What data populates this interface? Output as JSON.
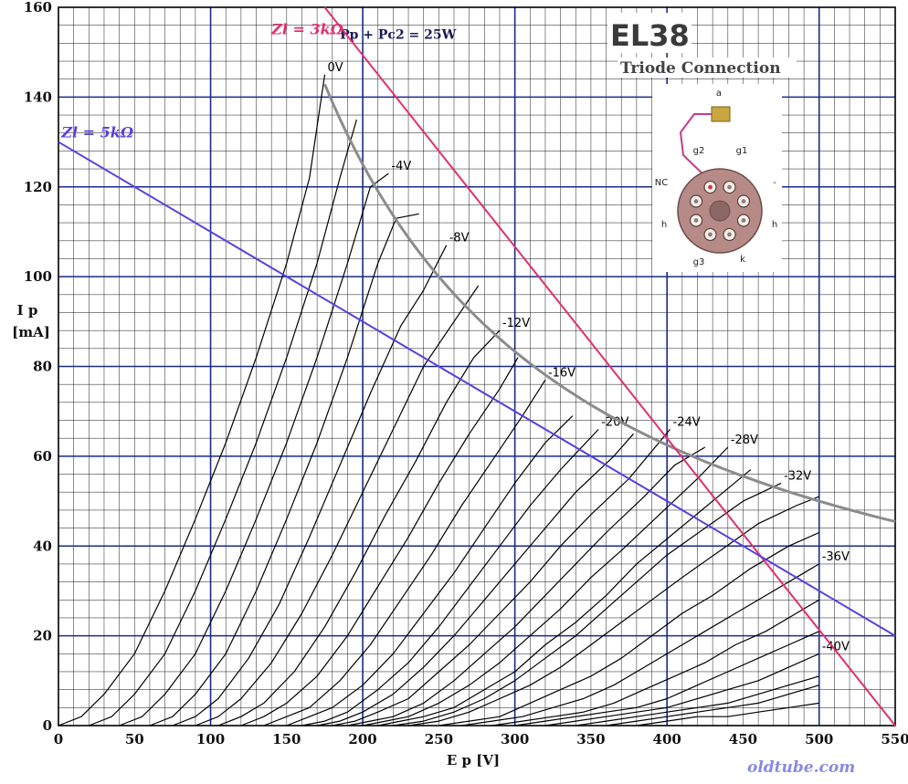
{
  "chart_data": {
    "type": "line",
    "title": "EL38",
    "subtitle": "Triode Connection",
    "xlabel": "E p [V]",
    "ylabel": "I p",
    "ylabel_unit": "[mA]",
    "xlim": [
      0,
      550
    ],
    "ylim": [
      0,
      160
    ],
    "x_ticks": [
      "0",
      "50",
      "100",
      "150",
      "200",
      "250",
      "300",
      "350",
      "400",
      "450",
      "500",
      "550"
    ],
    "y_ticks": [
      "0",
      "20",
      "40",
      "60",
      "80",
      "100",
      "120",
      "140",
      "160"
    ],
    "grid": true,
    "series": [
      {
        "name": "0V",
        "points": [
          [
            0,
            0
          ],
          [
            15,
            2
          ],
          [
            30,
            7
          ],
          [
            50,
            16
          ],
          [
            70,
            30
          ],
          [
            90,
            46
          ],
          [
            110,
            63
          ],
          [
            130,
            82
          ],
          [
            150,
            103
          ],
          [
            165,
            122
          ],
          [
            175,
            145
          ]
        ]
      },
      {
        "name": "",
        "points": [
          [
            20,
            0
          ],
          [
            35,
            2
          ],
          [
            50,
            7
          ],
          [
            70,
            16
          ],
          [
            90,
            30
          ],
          [
            110,
            46
          ],
          [
            130,
            63
          ],
          [
            150,
            82
          ],
          [
            170,
            103
          ],
          [
            185,
            122
          ],
          [
            196,
            135
          ]
        ]
      },
      {
        "name": "-4V",
        "points": [
          [
            40,
            0
          ],
          [
            55,
            2
          ],
          [
            70,
            7
          ],
          [
            90,
            16
          ],
          [
            110,
            30
          ],
          [
            130,
            46
          ],
          [
            150,
            63
          ],
          [
            170,
            82
          ],
          [
            190,
            103
          ],
          [
            205,
            120
          ],
          [
            217,
            123
          ]
        ]
      },
      {
        "name": "",
        "points": [
          [
            60,
            0
          ],
          [
            75,
            2
          ],
          [
            90,
            7
          ],
          [
            110,
            16
          ],
          [
            130,
            30
          ],
          [
            150,
            46
          ],
          [
            170,
            63
          ],
          [
            190,
            82
          ],
          [
            210,
            103
          ],
          [
            222,
            113
          ],
          [
            237,
            114
          ]
        ]
      },
      {
        "name": "-8V",
        "points": [
          [
            75,
            0
          ],
          [
            90,
            2
          ],
          [
            105,
            6
          ],
          [
            125,
            15
          ],
          [
            145,
            27
          ],
          [
            165,
            42
          ],
          [
            185,
            58
          ],
          [
            205,
            74
          ],
          [
            225,
            89
          ],
          [
            240,
            97
          ],
          [
            255,
            107
          ]
        ]
      },
      {
        "name": "",
        "points": [
          [
            90,
            0
          ],
          [
            105,
            2
          ],
          [
            120,
            6
          ],
          [
            140,
            14
          ],
          [
            160,
            25
          ],
          [
            180,
            38
          ],
          [
            200,
            52
          ],
          [
            220,
            66
          ],
          [
            240,
            80
          ],
          [
            260,
            90
          ],
          [
            276,
            98
          ]
        ]
      },
      {
        "name": "-12V",
        "points": [
          [
            105,
            0
          ],
          [
            120,
            2
          ],
          [
            135,
            5
          ],
          [
            155,
            12
          ],
          [
            175,
            22
          ],
          [
            195,
            34
          ],
          [
            215,
            47
          ],
          [
            235,
            59
          ],
          [
            255,
            72
          ],
          [
            273,
            82
          ],
          [
            290,
            88
          ]
        ]
      },
      {
        "name": "",
        "points": [
          [
            120,
            0
          ],
          [
            135,
            2
          ],
          [
            150,
            5
          ],
          [
            170,
            11
          ],
          [
            190,
            20
          ],
          [
            210,
            31
          ],
          [
            230,
            42
          ],
          [
            250,
            54
          ],
          [
            270,
            65
          ],
          [
            290,
            75
          ],
          [
            302,
            82
          ]
        ]
      },
      {
        "name": "-16V",
        "points": [
          [
            135,
            0
          ],
          [
            150,
            2
          ],
          [
            165,
            4
          ],
          [
            185,
            10
          ],
          [
            205,
            18
          ],
          [
            225,
            28
          ],
          [
            245,
            38
          ],
          [
            265,
            49
          ],
          [
            285,
            59
          ],
          [
            305,
            69
          ],
          [
            320,
            77
          ]
        ]
      },
      {
        "name": "",
        "points": [
          [
            150,
            0
          ],
          [
            165,
            2
          ],
          [
            180,
            4
          ],
          [
            200,
            9
          ],
          [
            220,
            16
          ],
          [
            240,
            25
          ],
          [
            260,
            34
          ],
          [
            280,
            44
          ],
          [
            300,
            54
          ],
          [
            320,
            63
          ],
          [
            338,
            69
          ]
        ]
      },
      {
        "name": "-20V",
        "points": [
          [
            160,
            0
          ],
          [
            175,
            1
          ],
          [
            190,
            3
          ],
          [
            210,
            8
          ],
          [
            230,
            14
          ],
          [
            250,
            22
          ],
          [
            270,
            31
          ],
          [
            290,
            40
          ],
          [
            310,
            49
          ],
          [
            330,
            57
          ],
          [
            355,
            66
          ]
        ]
      },
      {
        "name": "",
        "points": [
          [
            170,
            0
          ],
          [
            185,
            1
          ],
          [
            200,
            3
          ],
          [
            220,
            7
          ],
          [
            240,
            13
          ],
          [
            260,
            20
          ],
          [
            280,
            28
          ],
          [
            300,
            36
          ],
          [
            320,
            44
          ],
          [
            340,
            52
          ],
          [
            365,
            60
          ],
          [
            378,
            65
          ]
        ]
      },
      {
        "name": "-24V",
        "points": [
          [
            180,
            0
          ],
          [
            195,
            1
          ],
          [
            210,
            3
          ],
          [
            230,
            6
          ],
          [
            250,
            12
          ],
          [
            270,
            18
          ],
          [
            290,
            25
          ],
          [
            310,
            32
          ],
          [
            330,
            40
          ],
          [
            350,
            47
          ],
          [
            375,
            55
          ],
          [
            402,
            66
          ]
        ]
      },
      {
        "name": "",
        "points": [
          [
            190,
            0
          ],
          [
            205,
            1
          ],
          [
            220,
            2
          ],
          [
            240,
            5
          ],
          [
            260,
            10
          ],
          [
            280,
            16
          ],
          [
            300,
            22
          ],
          [
            320,
            29
          ],
          [
            340,
            36
          ],
          [
            360,
            43
          ],
          [
            385,
            51
          ],
          [
            405,
            58
          ],
          [
            425,
            62
          ]
        ]
      },
      {
        "name": "-28V",
        "points": [
          [
            200,
            0
          ],
          [
            215,
            1
          ],
          [
            230,
            2
          ],
          [
            250,
            5
          ],
          [
            270,
            9
          ],
          [
            290,
            14
          ],
          [
            310,
            20
          ],
          [
            330,
            26
          ],
          [
            350,
            33
          ],
          [
            370,
            39
          ],
          [
            395,
            47
          ],
          [
            420,
            55
          ],
          [
            440,
            62
          ]
        ]
      },
      {
        "name": "",
        "points": [
          [
            210,
            0
          ],
          [
            225,
            1
          ],
          [
            240,
            2
          ],
          [
            260,
            4
          ],
          [
            280,
            8
          ],
          [
            300,
            12
          ],
          [
            320,
            18
          ],
          [
            340,
            23
          ],
          [
            360,
            29
          ],
          [
            380,
            36
          ],
          [
            405,
            43
          ],
          [
            430,
            50
          ],
          [
            455,
            57
          ]
        ]
      },
      {
        "name": "-32V",
        "points": [
          [
            220,
            0
          ],
          [
            240,
            1
          ],
          [
            260,
            3
          ],
          [
            280,
            6
          ],
          [
            300,
            10
          ],
          [
            320,
            15
          ],
          [
            340,
            20
          ],
          [
            360,
            26
          ],
          [
            380,
            32
          ],
          [
            400,
            38
          ],
          [
            425,
            44
          ],
          [
            450,
            50
          ],
          [
            475,
            54
          ]
        ]
      },
      {
        "name": "",
        "points": [
          [
            230,
            0
          ],
          [
            250,
            1
          ],
          [
            270,
            3
          ],
          [
            290,
            6
          ],
          [
            310,
            9
          ],
          [
            330,
            13
          ],
          [
            350,
            18
          ],
          [
            370,
            23
          ],
          [
            390,
            28
          ],
          [
            410,
            33
          ],
          [
            435,
            39
          ],
          [
            460,
            45
          ],
          [
            485,
            49
          ],
          [
            500,
            51
          ]
        ]
      },
      {
        "name": "",
        "points": [
          [
            250,
            0
          ],
          [
            270,
            1
          ],
          [
            290,
            2
          ],
          [
            310,
            5
          ],
          [
            330,
            8
          ],
          [
            350,
            11
          ],
          [
            370,
            15
          ],
          [
            390,
            20
          ],
          [
            410,
            25
          ],
          [
            430,
            29
          ],
          [
            455,
            35
          ],
          [
            480,
            40
          ],
          [
            500,
            43
          ]
        ]
      },
      {
        "name": "-36V",
        "points": [
          [
            265,
            0
          ],
          [
            285,
            1
          ],
          [
            305,
            2
          ],
          [
            325,
            4
          ],
          [
            345,
            6
          ],
          [
            365,
            9
          ],
          [
            385,
            13
          ],
          [
            405,
            17
          ],
          [
            425,
            21
          ],
          [
            445,
            25
          ],
          [
            465,
            29
          ],
          [
            485,
            33
          ],
          [
            500,
            36
          ]
        ]
      },
      {
        "name": "",
        "points": [
          [
            285,
            0
          ],
          [
            305,
            1
          ],
          [
            325,
            2
          ],
          [
            345,
            3
          ],
          [
            365,
            5
          ],
          [
            385,
            8
          ],
          [
            405,
            11
          ],
          [
            425,
            14
          ],
          [
            445,
            18
          ],
          [
            465,
            21
          ],
          [
            485,
            25
          ],
          [
            500,
            28
          ]
        ]
      },
      {
        "name": "",
        "points": [
          [
            300,
            0
          ],
          [
            320,
            1
          ],
          [
            340,
            2
          ],
          [
            360,
            3
          ],
          [
            380,
            4
          ],
          [
            400,
            6
          ],
          [
            420,
            9
          ],
          [
            440,
            12
          ],
          [
            460,
            15
          ],
          [
            480,
            18
          ],
          [
            500,
            21
          ]
        ]
      },
      {
        "name": "-40V",
        "points": [
          [
            320,
            0
          ],
          [
            340,
            1
          ],
          [
            360,
            2
          ],
          [
            380,
            3
          ],
          [
            400,
            4
          ],
          [
            420,
            6
          ],
          [
            440,
            8
          ],
          [
            460,
            10
          ],
          [
            480,
            13
          ],
          [
            500,
            16
          ]
        ]
      },
      {
        "name": "",
        "points": [
          [
            340,
            0
          ],
          [
            360,
            1
          ],
          [
            380,
            2
          ],
          [
            400,
            3
          ],
          [
            420,
            4
          ],
          [
            440,
            5
          ],
          [
            460,
            7
          ],
          [
            480,
            9
          ],
          [
            500,
            11
          ]
        ]
      },
      {
        "name": "",
        "points": [
          [
            360,
            0
          ],
          [
            380,
            1
          ],
          [
            400,
            2
          ],
          [
            420,
            3
          ],
          [
            440,
            4
          ],
          [
            460,
            5
          ],
          [
            480,
            7
          ],
          [
            500,
            9
          ]
        ]
      },
      {
        "name": "",
        "points": [
          [
            380,
            0
          ],
          [
            400,
            1
          ],
          [
            420,
            2
          ],
          [
            440,
            2
          ],
          [
            460,
            3
          ],
          [
            480,
            4
          ],
          [
            500,
            5
          ]
        ]
      }
    ],
    "annotations": {
      "load_3k": {
        "label": "Zl = 3kΩ",
        "from": [
          175,
          160
        ],
        "to": [
          550,
          0
        ],
        "color": "#e0306e"
      },
      "load_5k": {
        "label": "Zl = 5kΩ",
        "from": [
          0,
          130
        ],
        "to": [
          550,
          20
        ],
        "color": "#5a3fe0"
      },
      "dissipation": {
        "label": "Pp + Pc2 = 25W",
        "watts": 25,
        "x_range": [
          175,
          550
        ],
        "color": "#8c8c8c"
      }
    },
    "colors": {
      "curves": "#000000",
      "major_grid": "#1a2a8c",
      "minor_grid": "#222222"
    }
  },
  "pinout": {
    "pins": [
      "a",
      "g2",
      "g1",
      "NC",
      "-",
      "h",
      "h",
      "g3",
      "k"
    ]
  },
  "watermark": "oldtube.com"
}
